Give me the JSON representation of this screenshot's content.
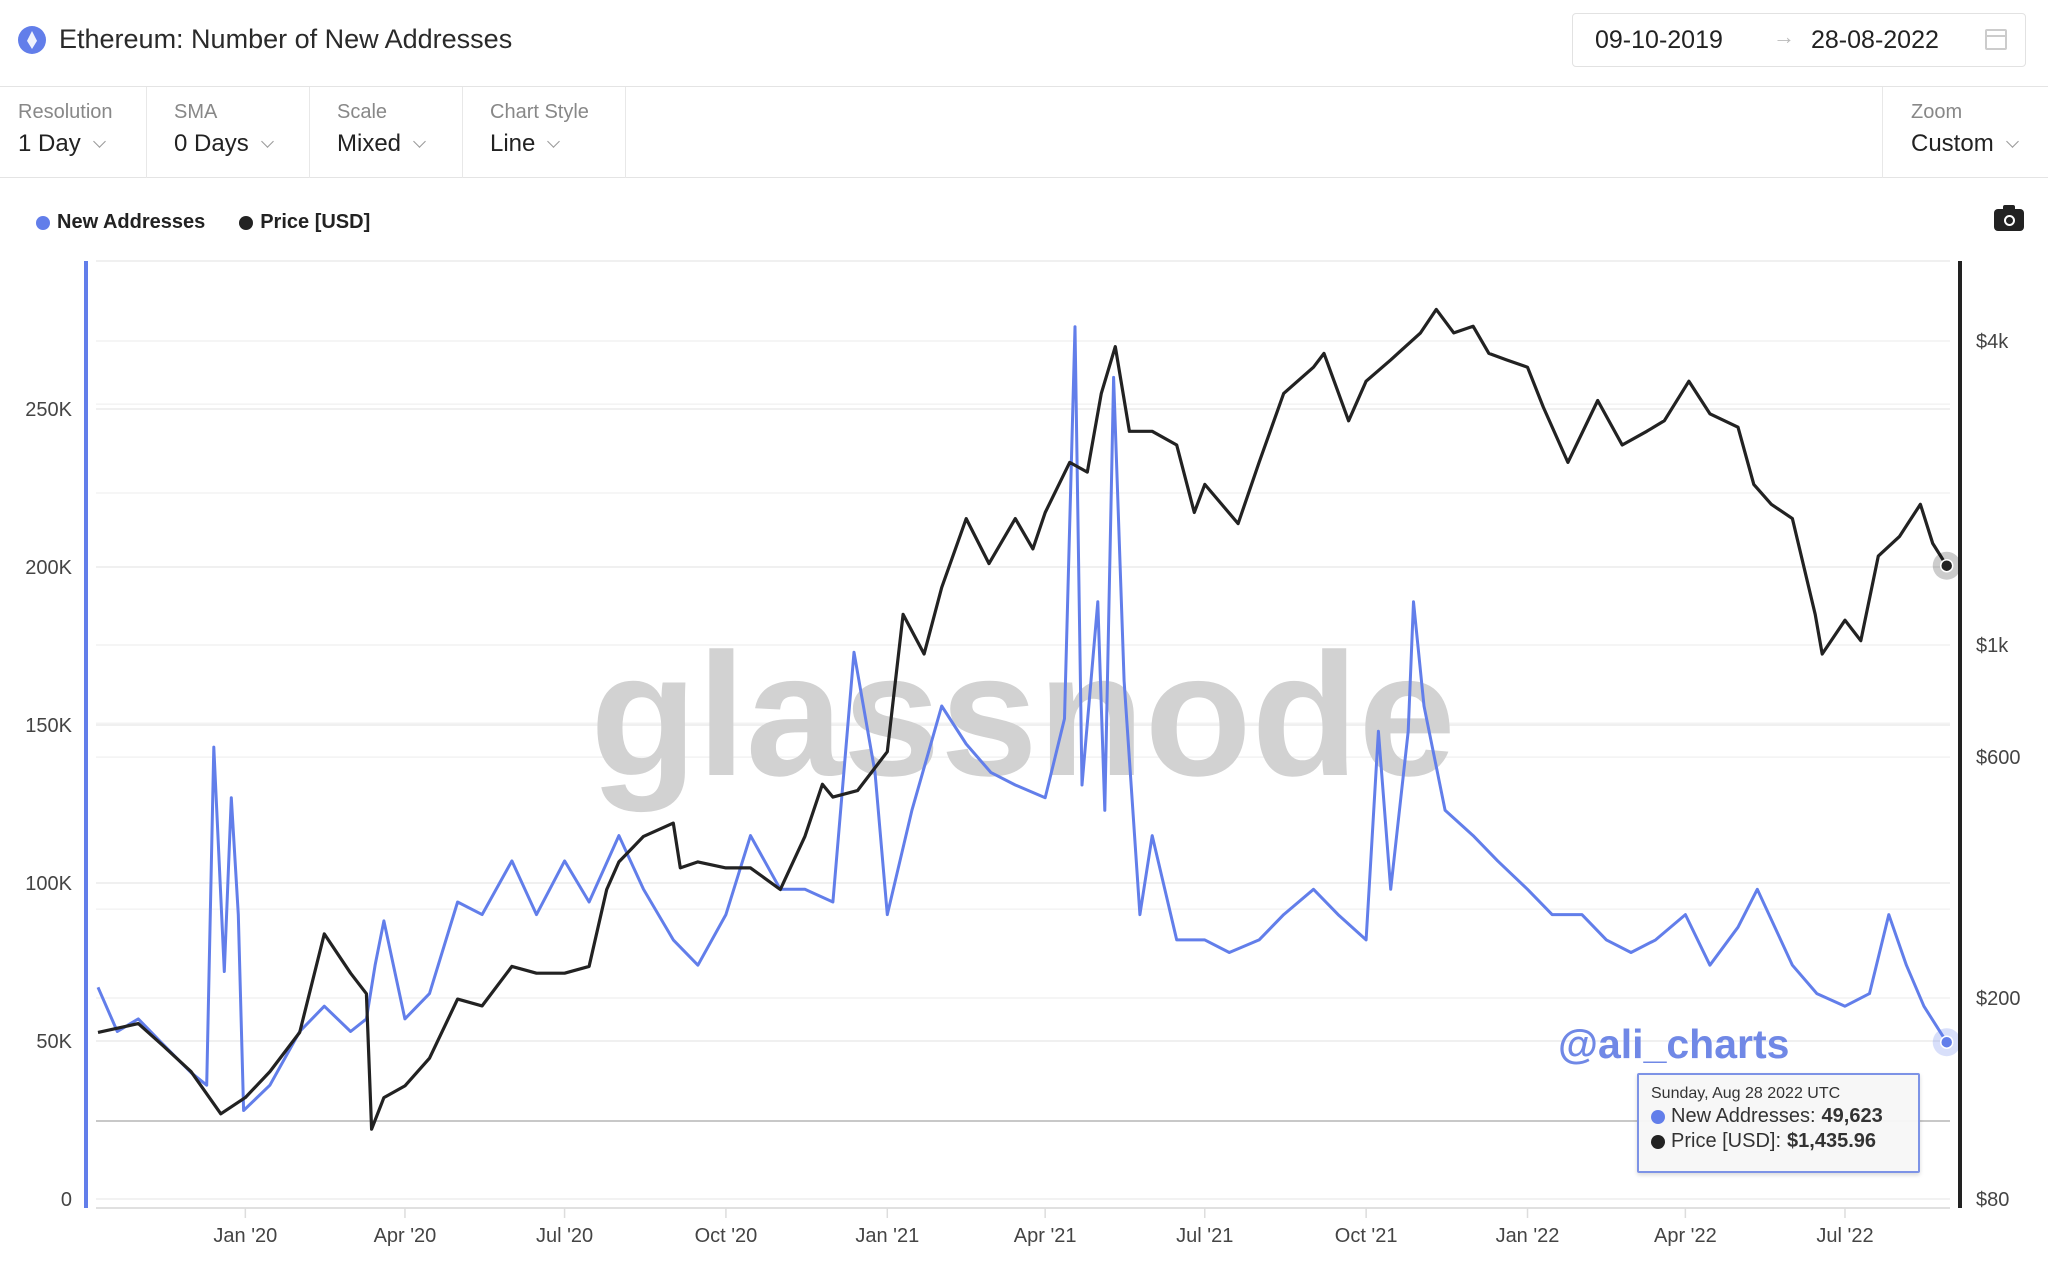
{
  "header": {
    "title": "Ethereum: Number of New Addresses",
    "date_from": "09-10-2019",
    "date_arrow": "→",
    "date_to": "28-08-2022",
    "icon": "ethereum-icon"
  },
  "toolbar": {
    "controls": [
      {
        "label": "Resolution",
        "value": "1 Day"
      },
      {
        "label": "SMA",
        "value": "0 Days"
      },
      {
        "label": "Scale",
        "value": "Mixed"
      },
      {
        "label": "Chart Style",
        "value": "Line"
      }
    ],
    "zoom": {
      "label": "Zoom",
      "value": "Custom"
    }
  },
  "watermark": "glassnode",
  "annotation": "@ali_charts",
  "tooltip": {
    "date": "Sunday, Aug 28 2022 UTC",
    "addr_label": "New Addresses:",
    "addr_value": "49,623",
    "price_label": "Price [USD]:",
    "price_value": "$1,435.96"
  },
  "colors": {
    "addresses": "#627eea",
    "price": "#222222"
  },
  "chart_data": {
    "type": "line",
    "legend": [
      "New Addresses",
      "Price [USD]"
    ],
    "legend_position": "top-left",
    "x_range": [
      "2019-10-09",
      "2022-08-28"
    ],
    "x_ticks": [
      "Jan '20",
      "Apr '20",
      "Jul '20",
      "Oct '20",
      "Jan '21",
      "Apr '21",
      "Jul '21",
      "Oct '21",
      "Jan '22",
      "Apr '22",
      "Jul '22"
    ],
    "y_left": {
      "scale": "linear",
      "range": [
        0,
        290000
      ],
      "ticks": [
        "0",
        "50K",
        "100K",
        "150K",
        "200K",
        "250K"
      ]
    },
    "y_right": {
      "scale": "log",
      "range": [
        80,
        5500
      ],
      "ticks": [
        "$80",
        "$200",
        "$600",
        "$1k",
        "$4k"
      ]
    },
    "grid": true,
    "series": [
      {
        "name": "New Addresses",
        "axis": "left",
        "points": [
          [
            "2019-10-09",
            67000
          ],
          [
            "2019-10-20",
            53000
          ],
          [
            "2019-11-01",
            57000
          ],
          [
            "2019-11-15",
            49000
          ],
          [
            "2019-12-01",
            40000
          ],
          [
            "2019-12-10",
            36000
          ],
          [
            "2019-12-14",
            143000
          ],
          [
            "2019-12-20",
            72000
          ],
          [
            "2019-12-24",
            127000
          ],
          [
            "2019-12-28",
            90000
          ],
          [
            "2019-12-31",
            28000
          ],
          [
            "2020-01-15",
            36000
          ],
          [
            "2020-02-01",
            53000
          ],
          [
            "2020-02-15",
            61000
          ],
          [
            "2020-03-01",
            53000
          ],
          [
            "2020-03-10",
            57000
          ],
          [
            "2020-03-15",
            74000
          ],
          [
            "2020-03-20",
            88000
          ],
          [
            "2020-04-01",
            57000
          ],
          [
            "2020-04-15",
            65000
          ],
          [
            "2020-05-01",
            94000
          ],
          [
            "2020-05-15",
            90000
          ],
          [
            "2020-06-01",
            107000
          ],
          [
            "2020-06-15",
            90000
          ],
          [
            "2020-07-01",
            107000
          ],
          [
            "2020-07-15",
            94000
          ],
          [
            "2020-08-01",
            115000
          ],
          [
            "2020-08-15",
            98000
          ],
          [
            "2020-09-01",
            82000
          ],
          [
            "2020-09-15",
            74000
          ],
          [
            "2020-10-01",
            90000
          ],
          [
            "2020-10-15",
            115000
          ],
          [
            "2020-11-01",
            98000
          ],
          [
            "2020-11-15",
            98000
          ],
          [
            "2020-12-01",
            94000
          ],
          [
            "2020-12-13",
            173000
          ],
          [
            "2020-12-25",
            135000
          ],
          [
            "2021-01-01",
            90000
          ],
          [
            "2021-01-15",
            123000
          ],
          [
            "2021-02-01",
            156000
          ],
          [
            "2021-02-15",
            144000
          ],
          [
            "2021-03-01",
            135000
          ],
          [
            "2021-03-15",
            131000
          ],
          [
            "2021-04-01",
            127000
          ],
          [
            "2021-04-12",
            152000
          ],
          [
            "2021-04-18",
            276000
          ],
          [
            "2021-04-22",
            131000
          ],
          [
            "2021-05-01",
            189000
          ],
          [
            "2021-05-05",
            123000
          ],
          [
            "2021-05-10",
            260000
          ],
          [
            "2021-05-16",
            164000
          ],
          [
            "2021-05-25",
            90000
          ],
          [
            "2021-06-01",
            115000
          ],
          [
            "2021-06-15",
            82000
          ],
          [
            "2021-07-01",
            82000
          ],
          [
            "2021-07-15",
            78000
          ],
          [
            "2021-08-01",
            82000
          ],
          [
            "2021-08-15",
            90000
          ],
          [
            "2021-09-01",
            98000
          ],
          [
            "2021-09-15",
            90000
          ],
          [
            "2021-10-01",
            82000
          ],
          [
            "2021-10-08",
            148000
          ],
          [
            "2021-10-15",
            98000
          ],
          [
            "2021-10-25",
            148000
          ],
          [
            "2021-10-28",
            189000
          ],
          [
            "2021-11-03",
            156000
          ],
          [
            "2021-11-15",
            123000
          ],
          [
            "2021-12-01",
            115000
          ],
          [
            "2021-12-15",
            107000
          ],
          [
            "2022-01-01",
            98000
          ],
          [
            "2022-01-15",
            90000
          ],
          [
            "2022-02-01",
            90000
          ],
          [
            "2022-02-15",
            82000
          ],
          [
            "2022-03-01",
            78000
          ],
          [
            "2022-03-15",
            82000
          ],
          [
            "2022-04-01",
            90000
          ],
          [
            "2022-04-15",
            74000
          ],
          [
            "2022-05-01",
            86000
          ],
          [
            "2022-05-12",
            98000
          ],
          [
            "2022-06-01",
            74000
          ],
          [
            "2022-06-15",
            65000
          ],
          [
            "2022-07-01",
            61000
          ],
          [
            "2022-07-15",
            65000
          ],
          [
            "2022-07-26",
            90000
          ],
          [
            "2022-08-05",
            74000
          ],
          [
            "2022-08-15",
            61000
          ],
          [
            "2022-08-28",
            49623
          ]
        ]
      },
      {
        "name": "Price [USD]",
        "axis": "right",
        "points": [
          [
            "2019-10-09",
            171
          ],
          [
            "2019-11-01",
            178
          ],
          [
            "2019-11-15",
            161
          ],
          [
            "2019-12-01",
            143
          ],
          [
            "2019-12-18",
            118
          ],
          [
            "2020-01-01",
            127
          ],
          [
            "2020-01-15",
            143
          ],
          [
            "2020-02-01",
            171
          ],
          [
            "2020-02-15",
            268
          ],
          [
            "2020-03-01",
            224
          ],
          [
            "2020-03-10",
            204
          ],
          [
            "2020-03-13",
            110
          ],
          [
            "2020-03-20",
            127
          ],
          [
            "2020-04-01",
            134
          ],
          [
            "2020-04-15",
            152
          ],
          [
            "2020-05-01",
            199
          ],
          [
            "2020-05-15",
            193
          ],
          [
            "2020-06-01",
            231
          ],
          [
            "2020-06-15",
            224
          ],
          [
            "2020-07-01",
            224
          ],
          [
            "2020-07-15",
            231
          ],
          [
            "2020-07-25",
            328
          ],
          [
            "2020-08-01",
            372
          ],
          [
            "2020-08-15",
            418
          ],
          [
            "2020-09-01",
            444
          ],
          [
            "2020-09-05",
            362
          ],
          [
            "2020-09-15",
            372
          ],
          [
            "2020-10-01",
            362
          ],
          [
            "2020-10-15",
            362
          ],
          [
            "2020-11-01",
            328
          ],
          [
            "2020-11-15",
            418
          ],
          [
            "2020-11-25",
            530
          ],
          [
            "2020-12-01",
            500
          ],
          [
            "2020-12-15",
            515
          ],
          [
            "2021-01-01",
            615
          ],
          [
            "2021-01-10",
            1150
          ],
          [
            "2021-01-22",
            960
          ],
          [
            "2021-02-01",
            1300
          ],
          [
            "2021-02-15",
            1780
          ],
          [
            "2021-02-28",
            1450
          ],
          [
            "2021-03-15",
            1780
          ],
          [
            "2021-03-25",
            1550
          ],
          [
            "2021-04-01",
            1830
          ],
          [
            "2021-04-15",
            2300
          ],
          [
            "2021-04-25",
            2200
          ],
          [
            "2021-05-03",
            3150
          ],
          [
            "2021-05-11",
            3900
          ],
          [
            "2021-05-19",
            2650
          ],
          [
            "2021-06-01",
            2650
          ],
          [
            "2021-06-15",
            2490
          ],
          [
            "2021-06-25",
            1830
          ],
          [
            "2021-07-01",
            2080
          ],
          [
            "2021-07-20",
            1740
          ],
          [
            "2021-08-01",
            2300
          ],
          [
            "2021-08-15",
            3150
          ],
          [
            "2021-09-01",
            3550
          ],
          [
            "2021-09-07",
            3780
          ],
          [
            "2021-09-21",
            2780
          ],
          [
            "2021-10-01",
            3330
          ],
          [
            "2021-10-15",
            3670
          ],
          [
            "2021-11-01",
            4150
          ],
          [
            "2021-11-10",
            4620
          ],
          [
            "2021-11-20",
            4150
          ],
          [
            "2021-12-01",
            4280
          ],
          [
            "2021-12-10",
            3780
          ],
          [
            "2021-12-20",
            3670
          ],
          [
            "2022-01-01",
            3550
          ],
          [
            "2022-01-10",
            2960
          ],
          [
            "2022-01-24",
            2300
          ],
          [
            "2022-02-10",
            3050
          ],
          [
            "2022-02-24",
            2490
          ],
          [
            "2022-03-10",
            2650
          ],
          [
            "2022-03-20",
            2780
          ],
          [
            "2022-04-03",
            3330
          ],
          [
            "2022-04-15",
            2870
          ],
          [
            "2022-05-01",
            2700
          ],
          [
            "2022-05-10",
            2080
          ],
          [
            "2022-05-20",
            1900
          ],
          [
            "2022-06-01",
            1780
          ],
          [
            "2022-06-14",
            1150
          ],
          [
            "2022-06-18",
            960
          ],
          [
            "2022-07-01",
            1120
          ],
          [
            "2022-07-10",
            1020
          ],
          [
            "2022-07-20",
            1500
          ],
          [
            "2022-08-01",
            1640
          ],
          [
            "2022-08-13",
            1900
          ],
          [
            "2022-08-20",
            1590
          ],
          [
            "2022-08-28",
            1435.96
          ]
        ]
      }
    ]
  }
}
